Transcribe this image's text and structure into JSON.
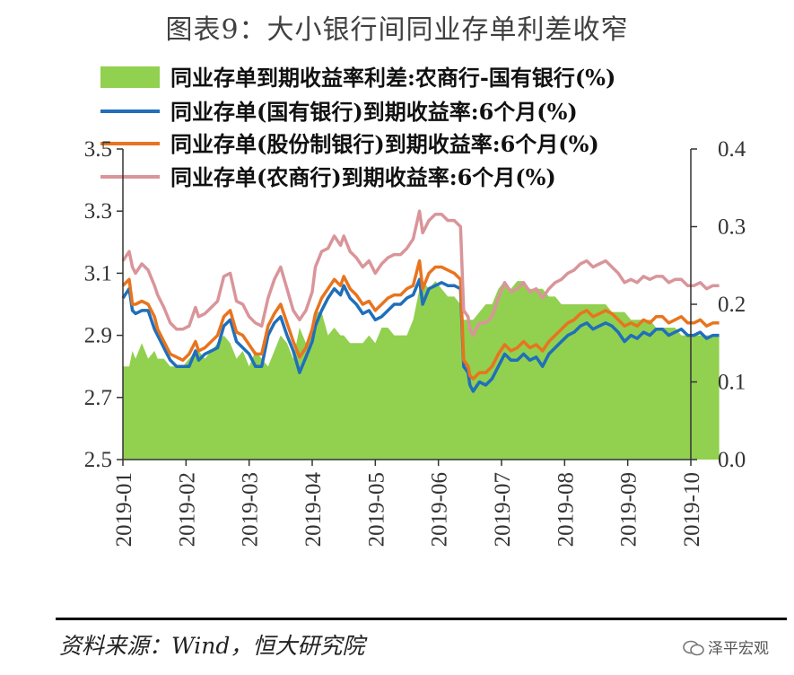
{
  "header": {
    "title": "图表9：大小银行间同业存单利差收窄"
  },
  "footer": {
    "source": "资料来源：Wind，恒大研究院",
    "watermark": "泽平宏观"
  },
  "colors": {
    "spread": "#92d050",
    "state": "#1f6fba",
    "joint": "#e8741f",
    "rural": "#d9959a",
    "axis": "#333333"
  },
  "chart_data": {
    "type": "line+area",
    "title": "图表9：大小银行间同业存单利差收窄",
    "x_ticks": [
      "2019-01",
      "2019-02",
      "2019-03",
      "2019-04",
      "2019-05",
      "2019-06",
      "2019-07",
      "2019-08",
      "2019-09",
      "2019-10"
    ],
    "left_axis": {
      "min": 2.5,
      "max": 3.5,
      "ticks": [
        "2.5",
        "2.7",
        "2.9",
        "3.1",
        "3.3",
        "3.5"
      ]
    },
    "right_axis": {
      "min": 0.0,
      "max": 0.4,
      "ticks": [
        "0.0",
        "0.1",
        "0.2",
        "0.3",
        "0.4"
      ]
    },
    "legend": [
      {
        "name": "同业存单到期收益率利差:农商行-国有银行(%)",
        "axis": "right",
        "style": "area"
      },
      {
        "name": "同业存单(国有银行)到期收益率:6个月(%)",
        "axis": "left",
        "style": "line"
      },
      {
        "name": "同业存单(股份制银行)到期收益率:6个月(%)",
        "axis": "left",
        "style": "line"
      },
      {
        "name": "同业存单(农商行)到期收益率:6个月(%)",
        "axis": "left",
        "style": "line"
      }
    ],
    "x": [
      0,
      0.1,
      0.15,
      0.2,
      0.3,
      0.4,
      0.5,
      0.55,
      0.65,
      0.75,
      0.85,
      0.95,
      1.05,
      1.15,
      1.2,
      1.3,
      1.4,
      1.5,
      1.6,
      1.7,
      1.8,
      1.9,
      2.0,
      2.1,
      2.2,
      2.3,
      2.4,
      2.5,
      2.6,
      2.7,
      2.8,
      2.9,
      3.0,
      3.05,
      3.15,
      3.25,
      3.35,
      3.45,
      3.5,
      3.6,
      3.7,
      3.8,
      3.9,
      4.0,
      4.1,
      4.2,
      4.3,
      4.4,
      4.5,
      4.6,
      4.7,
      4.75,
      4.85,
      4.95,
      5.05,
      5.15,
      5.25,
      5.35,
      5.4,
      5.47,
      5.5,
      5.55,
      5.65,
      5.75,
      5.85,
      5.95,
      6.05,
      6.15,
      6.25,
      6.35,
      6.45,
      6.55,
      6.65,
      6.75,
      6.85,
      6.95,
      7.05,
      7.15,
      7.25,
      7.35,
      7.45,
      7.55,
      7.65,
      7.75,
      7.85,
      7.95,
      8.05,
      8.15,
      8.25,
      8.35,
      8.45,
      8.55,
      8.65,
      8.75,
      8.85,
      8.95,
      9.05,
      9.15,
      9.25,
      9.35,
      9.45
    ],
    "series": [
      {
        "name": "国有银行",
        "axis": "left",
        "values": [
          3.02,
          3.05,
          2.98,
          2.97,
          2.98,
          2.98,
          2.92,
          2.9,
          2.86,
          2.82,
          2.8,
          2.8,
          2.8,
          2.85,
          2.82,
          2.84,
          2.85,
          2.86,
          2.93,
          2.95,
          2.88,
          2.86,
          2.84,
          2.8,
          2.8,
          2.9,
          2.94,
          2.96,
          2.9,
          2.85,
          2.78,
          2.83,
          2.88,
          2.93,
          2.98,
          3.02,
          3.05,
          3.03,
          3.06,
          3.02,
          3.0,
          2.97,
          2.98,
          2.95,
          2.96,
          2.98,
          3.0,
          3.0,
          3.02,
          3.03,
          3.08,
          3.0,
          3.05,
          3.06,
          3.07,
          3.06,
          3.06,
          3.05,
          2.8,
          2.78,
          2.74,
          2.72,
          2.75,
          2.74,
          2.76,
          2.8,
          2.84,
          2.82,
          2.82,
          2.84,
          2.82,
          2.83,
          2.8,
          2.84,
          2.86,
          2.88,
          2.9,
          2.91,
          2.93,
          2.94,
          2.92,
          2.93,
          2.94,
          2.93,
          2.91,
          2.88,
          2.9,
          2.89,
          2.91,
          2.9,
          2.92,
          2.92,
          2.9,
          2.91,
          2.92,
          2.9,
          2.9,
          2.91,
          2.89,
          2.9,
          2.9
        ]
      },
      {
        "name": "股份制银行",
        "axis": "left",
        "values": [
          3.06,
          3.08,
          3.0,
          3.0,
          3.01,
          3.0,
          2.96,
          2.92,
          2.88,
          2.84,
          2.83,
          2.82,
          2.84,
          2.88,
          2.85,
          2.86,
          2.88,
          2.9,
          2.96,
          2.98,
          2.91,
          2.9,
          2.87,
          2.84,
          2.84,
          2.93,
          2.97,
          3.0,
          2.94,
          2.88,
          2.83,
          2.86,
          2.92,
          2.97,
          3.02,
          3.05,
          3.08,
          3.06,
          3.09,
          3.05,
          3.03,
          3.0,
          3.01,
          2.98,
          3.0,
          3.02,
          3.03,
          3.03,
          3.05,
          3.06,
          3.14,
          3.05,
          3.1,
          3.12,
          3.12,
          3.11,
          3.1,
          3.08,
          2.82,
          2.8,
          2.77,
          2.76,
          2.78,
          2.78,
          2.8,
          2.84,
          2.87,
          2.85,
          2.86,
          2.88,
          2.86,
          2.87,
          2.85,
          2.88,
          2.9,
          2.92,
          2.94,
          2.95,
          2.97,
          2.98,
          2.96,
          2.97,
          2.98,
          2.97,
          2.95,
          2.93,
          2.94,
          2.93,
          2.95,
          2.94,
          2.96,
          2.96,
          2.94,
          2.95,
          2.96,
          2.94,
          2.94,
          2.95,
          2.93,
          2.94,
          2.94
        ]
      },
      {
        "name": "农商行",
        "axis": "left",
        "values": [
          3.14,
          3.17,
          3.12,
          3.1,
          3.13,
          3.11,
          3.06,
          3.03,
          2.99,
          2.94,
          2.92,
          2.92,
          2.93,
          2.99,
          2.96,
          2.97,
          2.99,
          3.01,
          3.09,
          3.1,
          3.01,
          3.0,
          2.96,
          2.94,
          2.93,
          3.02,
          3.08,
          3.12,
          3.05,
          2.98,
          2.95,
          2.98,
          3.04,
          3.12,
          3.17,
          3.18,
          3.22,
          3.19,
          3.22,
          3.17,
          3.15,
          3.12,
          3.14,
          3.1,
          3.13,
          3.15,
          3.16,
          3.16,
          3.18,
          3.21,
          3.3,
          3.23,
          3.27,
          3.29,
          3.29,
          3.27,
          3.27,
          3.25,
          2.98,
          2.96,
          2.92,
          2.9,
          2.94,
          2.94,
          2.96,
          3.02,
          3.07,
          3.04,
          3.05,
          3.07,
          3.04,
          3.05,
          3.02,
          3.05,
          3.07,
          3.08,
          3.1,
          3.11,
          3.13,
          3.14,
          3.12,
          3.13,
          3.14,
          3.12,
          3.1,
          3.07,
          3.08,
          3.07,
          3.09,
          3.08,
          3.09,
          3.09,
          3.07,
          3.08,
          3.08,
          3.06,
          3.06,
          3.07,
          3.05,
          3.06,
          3.06
        ]
      },
      {
        "name": "利差:农商行-国有银行",
        "axis": "right",
        "values": [
          0.12,
          0.12,
          0.14,
          0.13,
          0.15,
          0.13,
          0.14,
          0.13,
          0.13,
          0.12,
          0.12,
          0.12,
          0.13,
          0.14,
          0.14,
          0.13,
          0.14,
          0.15,
          0.16,
          0.15,
          0.13,
          0.14,
          0.12,
          0.14,
          0.13,
          0.12,
          0.14,
          0.16,
          0.15,
          0.13,
          0.17,
          0.15,
          0.16,
          0.19,
          0.19,
          0.16,
          0.17,
          0.16,
          0.16,
          0.15,
          0.15,
          0.15,
          0.16,
          0.15,
          0.17,
          0.17,
          0.16,
          0.16,
          0.16,
          0.18,
          0.22,
          0.23,
          0.22,
          0.23,
          0.22,
          0.21,
          0.21,
          0.2,
          0.18,
          0.18,
          0.18,
          0.18,
          0.19,
          0.2,
          0.2,
          0.22,
          0.23,
          0.22,
          0.23,
          0.23,
          0.22,
          0.22,
          0.22,
          0.21,
          0.21,
          0.2,
          0.2,
          0.2,
          0.2,
          0.2,
          0.2,
          0.2,
          0.2,
          0.19,
          0.19,
          0.19,
          0.18,
          0.18,
          0.18,
          0.18,
          0.17,
          0.17,
          0.17,
          0.17,
          0.16,
          0.16,
          0.16,
          0.16,
          0.16,
          0.16,
          0.16
        ]
      }
    ]
  }
}
